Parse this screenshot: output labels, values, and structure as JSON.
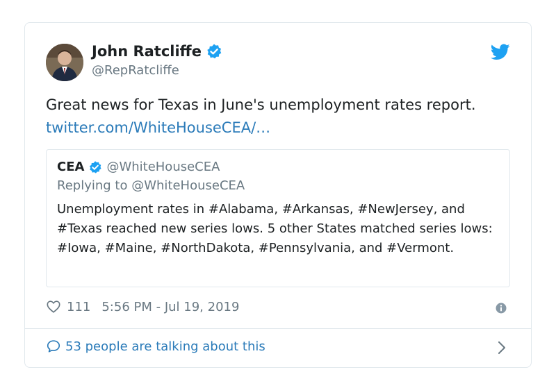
{
  "author": {
    "name": "John Ratcliffe",
    "handle": "@RepRatcliffe",
    "avatar_icon": "avatar-photo"
  },
  "tweet": {
    "text": "Great news for Texas in June's unemployment rates report.",
    "link": "twitter.com/WhiteHouseCEA/…"
  },
  "quoted": {
    "name": "CEA",
    "handle": "@WhiteHouseCEA",
    "reply_to": "Replying to @WhiteHouseCEA",
    "text": "Unemployment rates in #Alabama, #Arkansas, #NewJersey, and #Texas reached new series lows. 5 other States matched series lows: #Iowa, #Maine, #NorthDakota, #Pennsylvania, and #Vermont."
  },
  "meta": {
    "likes": "111",
    "timestamp": "5:56 PM - Jul 19, 2019"
  },
  "footer": {
    "talking": "53 people are talking about this"
  },
  "colors": {
    "brand_blue": "#1da1f2",
    "link_blue": "#2b7bb9",
    "muted_gray": "#697882",
    "border": "#e1e8ed"
  },
  "icons": [
    "verified-badge-icon",
    "twitter-bird-icon",
    "heart-icon",
    "info-icon",
    "speech-bubble-icon",
    "chevron-right-icon"
  ]
}
